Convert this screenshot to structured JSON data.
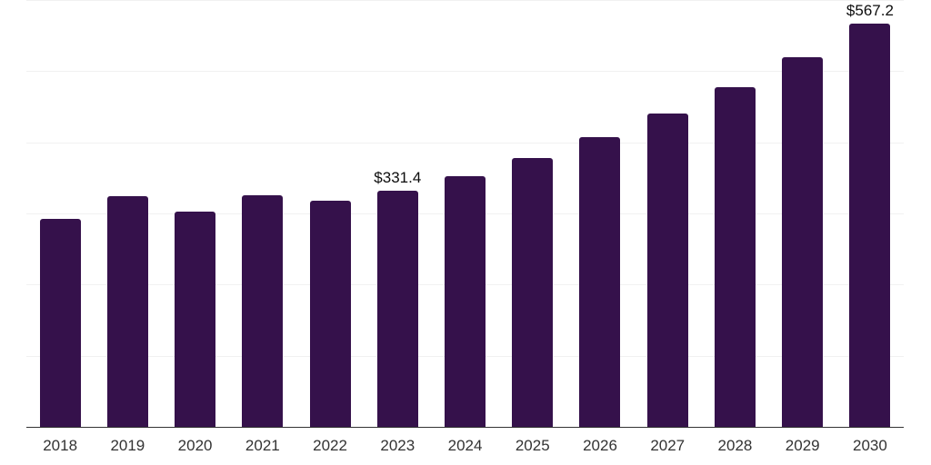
{
  "chart_data": {
    "type": "bar",
    "title": "",
    "xlabel": "",
    "ylabel": "",
    "categories": [
      "2018",
      "2019",
      "2020",
      "2021",
      "2022",
      "2023",
      "2024",
      "2025",
      "2026",
      "2027",
      "2028",
      "2029",
      "2030"
    ],
    "values": [
      292,
      324,
      303,
      326,
      318,
      331.4,
      352,
      378,
      407,
      440,
      477,
      520,
      567.2
    ],
    "data_labels": {
      "2023": "$331.4",
      "2030": "$567.2"
    },
    "ylim": [
      0,
      600
    ],
    "grid_step": 100,
    "grid": "on",
    "y_tick_labels_visible": false,
    "legend": "none",
    "colors": {
      "bar": "#35114b",
      "gridline": "#f1f1f1",
      "axis_line": "#333333",
      "tick_label": "#333333",
      "data_label": "#0d0d0d",
      "background": "#ffffff"
    }
  }
}
